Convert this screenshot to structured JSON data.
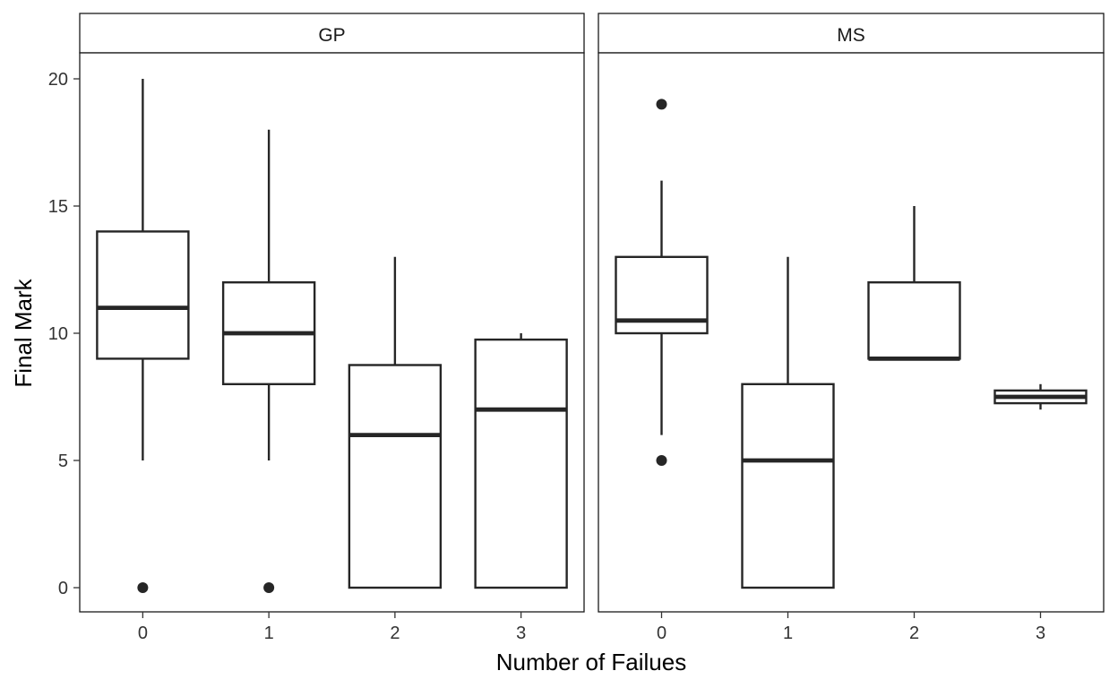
{
  "chart_data": {
    "type": "boxplot",
    "facet": "school",
    "xlabel": "Number of Failues",
    "ylabel": "Final Mark",
    "ylim": [
      -1,
      21
    ],
    "yticks": [
      0,
      5,
      10,
      15,
      20
    ],
    "grid": false,
    "categories": [
      "0",
      "1",
      "2",
      "3"
    ],
    "panels": [
      {
        "name": "GP",
        "boxes": [
          {
            "category": "0",
            "lower_whisker": 5,
            "q1": 9,
            "median": 11,
            "q3": 14,
            "upper_whisker": 20,
            "outliers": [
              0
            ]
          },
          {
            "category": "1",
            "lower_whisker": 5,
            "q1": 8,
            "median": 10,
            "q3": 12,
            "upper_whisker": 18,
            "outliers": [
              0
            ]
          },
          {
            "category": "2",
            "lower_whisker": 0,
            "q1": 0,
            "median": 6,
            "q3": 8.75,
            "upper_whisker": 13,
            "outliers": []
          },
          {
            "category": "3",
            "lower_whisker": 0,
            "q1": 0,
            "median": 7,
            "q3": 9.75,
            "upper_whisker": 10,
            "outliers": []
          }
        ]
      },
      {
        "name": "MS",
        "boxes": [
          {
            "category": "0",
            "lower_whisker": 6,
            "q1": 10,
            "median": 10.5,
            "q3": 13,
            "upper_whisker": 16,
            "outliers": [
              19,
              5
            ]
          },
          {
            "category": "1",
            "lower_whisker": 0,
            "q1": 0,
            "median": 5,
            "q3": 8,
            "upper_whisker": 13,
            "outliers": []
          },
          {
            "category": "2",
            "lower_whisker": 9,
            "q1": 9,
            "median": 9,
            "q3": 12,
            "upper_whisker": 15,
            "outliers": []
          },
          {
            "category": "3",
            "lower_whisker": 7,
            "q1": 7.25,
            "median": 7.5,
            "q3": 7.75,
            "upper_whisker": 8,
            "outliers": []
          }
        ]
      }
    ],
    "colors": {
      "line": "#262626",
      "frame": "#1a1a1a",
      "text": "#333333",
      "background": "#ffffff"
    }
  }
}
